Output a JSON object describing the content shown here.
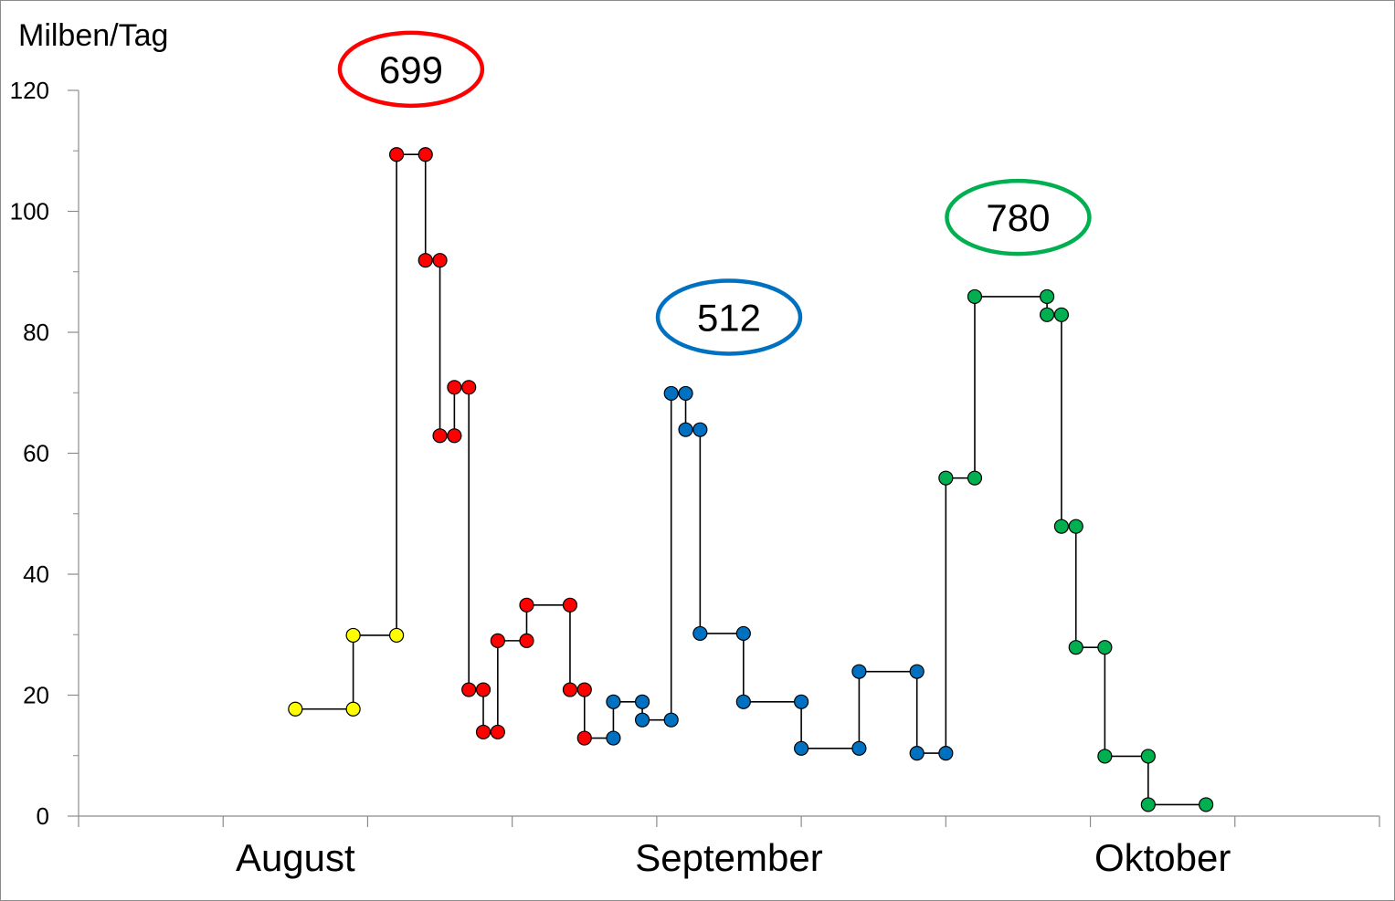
{
  "chart_data": {
    "type": "line",
    "ylabel": "Milben/Tag",
    "xlabel": "",
    "ylim": [
      0,
      120
    ],
    "yticks": [
      0,
      20,
      40,
      60,
      80,
      100,
      120
    ],
    "xlim": [
      0,
      9
    ],
    "x_month_labels": [
      {
        "label": "August",
        "x": 1.5
      },
      {
        "label": "September",
        "x": 4.5
      },
      {
        "label": "Oktober",
        "x": 7.5
      }
    ],
    "step": true,
    "grid": false,
    "colors": {
      "yellow": "#ffff00",
      "red": "#ff0000",
      "blue": "#0070c0",
      "green": "#00b050",
      "line": "#000000",
      "axis": "#8c8c8c"
    },
    "points": [
      {
        "x": 1.5,
        "y": 17.7,
        "color": "#ffff00"
      },
      {
        "x": 1.9,
        "y": 17.7,
        "color": "#ffff00"
      },
      {
        "x": 1.9,
        "y": 29.9,
        "color": "#ffff00"
      },
      {
        "x": 2.2,
        "y": 29.9,
        "color": "#ffff00"
      },
      {
        "x": 2.2,
        "y": 109.4,
        "color": "#ff0000"
      },
      {
        "x": 2.4,
        "y": 109.4,
        "color": "#ff0000"
      },
      {
        "x": 2.4,
        "y": 91.9,
        "color": "#ff0000"
      },
      {
        "x": 2.5,
        "y": 91.9,
        "color": "#ff0000"
      },
      {
        "x": 2.5,
        "y": 62.9,
        "color": "#ff0000"
      },
      {
        "x": 2.6,
        "y": 62.9,
        "color": "#ff0000"
      },
      {
        "x": 2.6,
        "y": 70.9,
        "color": "#ff0000"
      },
      {
        "x": 2.7,
        "y": 70.9,
        "color": "#ff0000"
      },
      {
        "x": 2.7,
        "y": 20.9,
        "color": "#ff0000"
      },
      {
        "x": 2.8,
        "y": 20.9,
        "color": "#ff0000"
      },
      {
        "x": 2.8,
        "y": 13.9,
        "color": "#ff0000"
      },
      {
        "x": 2.9,
        "y": 13.9,
        "color": "#ff0000"
      },
      {
        "x": 2.9,
        "y": 29.0,
        "color": "#ff0000"
      },
      {
        "x": 3.1,
        "y": 29.0,
        "color": "#ff0000"
      },
      {
        "x": 3.1,
        "y": 34.9,
        "color": "#ff0000"
      },
      {
        "x": 3.4,
        "y": 34.9,
        "color": "#ff0000"
      },
      {
        "x": 3.4,
        "y": 20.9,
        "color": "#ff0000"
      },
      {
        "x": 3.5,
        "y": 20.9,
        "color": "#ff0000"
      },
      {
        "x": 3.5,
        "y": 12.9,
        "color": "#ff0000"
      },
      {
        "x": 3.7,
        "y": 12.9,
        "color": "#0070c0"
      },
      {
        "x": 3.7,
        "y": 18.9,
        "color": "#0070c0"
      },
      {
        "x": 3.9,
        "y": 18.9,
        "color": "#0070c0"
      },
      {
        "x": 3.9,
        "y": 15.9,
        "color": "#0070c0"
      },
      {
        "x": 4.1,
        "y": 15.9,
        "color": "#0070c0"
      },
      {
        "x": 4.1,
        "y": 69.9,
        "color": "#0070c0"
      },
      {
        "x": 4.2,
        "y": 69.9,
        "color": "#0070c0"
      },
      {
        "x": 4.2,
        "y": 63.9,
        "color": "#0070c0"
      },
      {
        "x": 4.3,
        "y": 63.9,
        "color": "#0070c0"
      },
      {
        "x": 4.3,
        "y": 30.2,
        "color": "#0070c0"
      },
      {
        "x": 4.6,
        "y": 30.2,
        "color": "#0070c0"
      },
      {
        "x": 4.6,
        "y": 18.9,
        "color": "#0070c0"
      },
      {
        "x": 5.0,
        "y": 18.9,
        "color": "#0070c0"
      },
      {
        "x": 5.0,
        "y": 11.2,
        "color": "#0070c0"
      },
      {
        "x": 5.4,
        "y": 11.2,
        "color": "#0070c0"
      },
      {
        "x": 5.4,
        "y": 23.9,
        "color": "#0070c0"
      },
      {
        "x": 5.8,
        "y": 23.9,
        "color": "#0070c0"
      },
      {
        "x": 5.8,
        "y": 10.4,
        "color": "#0070c0"
      },
      {
        "x": 6.0,
        "y": 10.4,
        "color": "#0070c0"
      },
      {
        "x": 6.0,
        "y": 55.9,
        "color": "#00b050"
      },
      {
        "x": 6.2,
        "y": 55.9,
        "color": "#00b050"
      },
      {
        "x": 6.2,
        "y": 85.9,
        "color": "#00b050"
      },
      {
        "x": 6.7,
        "y": 85.9,
        "color": "#00b050"
      },
      {
        "x": 6.7,
        "y": 82.9,
        "color": "#00b050"
      },
      {
        "x": 6.8,
        "y": 82.9,
        "color": "#00b050"
      },
      {
        "x": 6.8,
        "y": 47.9,
        "color": "#00b050"
      },
      {
        "x": 6.9,
        "y": 47.9,
        "color": "#00b050"
      },
      {
        "x": 6.9,
        "y": 27.9,
        "color": "#00b050"
      },
      {
        "x": 7.1,
        "y": 27.9,
        "color": "#00b050"
      },
      {
        "x": 7.1,
        "y": 9.9,
        "color": "#00b050"
      },
      {
        "x": 7.4,
        "y": 9.9,
        "color": "#00b050"
      },
      {
        "x": 7.4,
        "y": 1.9,
        "color": "#00b050"
      },
      {
        "x": 7.8,
        "y": 1.9,
        "color": "#00b050"
      }
    ],
    "annotations": [
      {
        "text": "699",
        "x": 2.3,
        "y": 123.5,
        "color": "#ff0000"
      },
      {
        "text": "512",
        "x": 4.5,
        "y": 82.5,
        "color": "#0070c0"
      },
      {
        "text": "780",
        "x": 6.5,
        "y": 99,
        "color": "#00b050"
      }
    ]
  }
}
